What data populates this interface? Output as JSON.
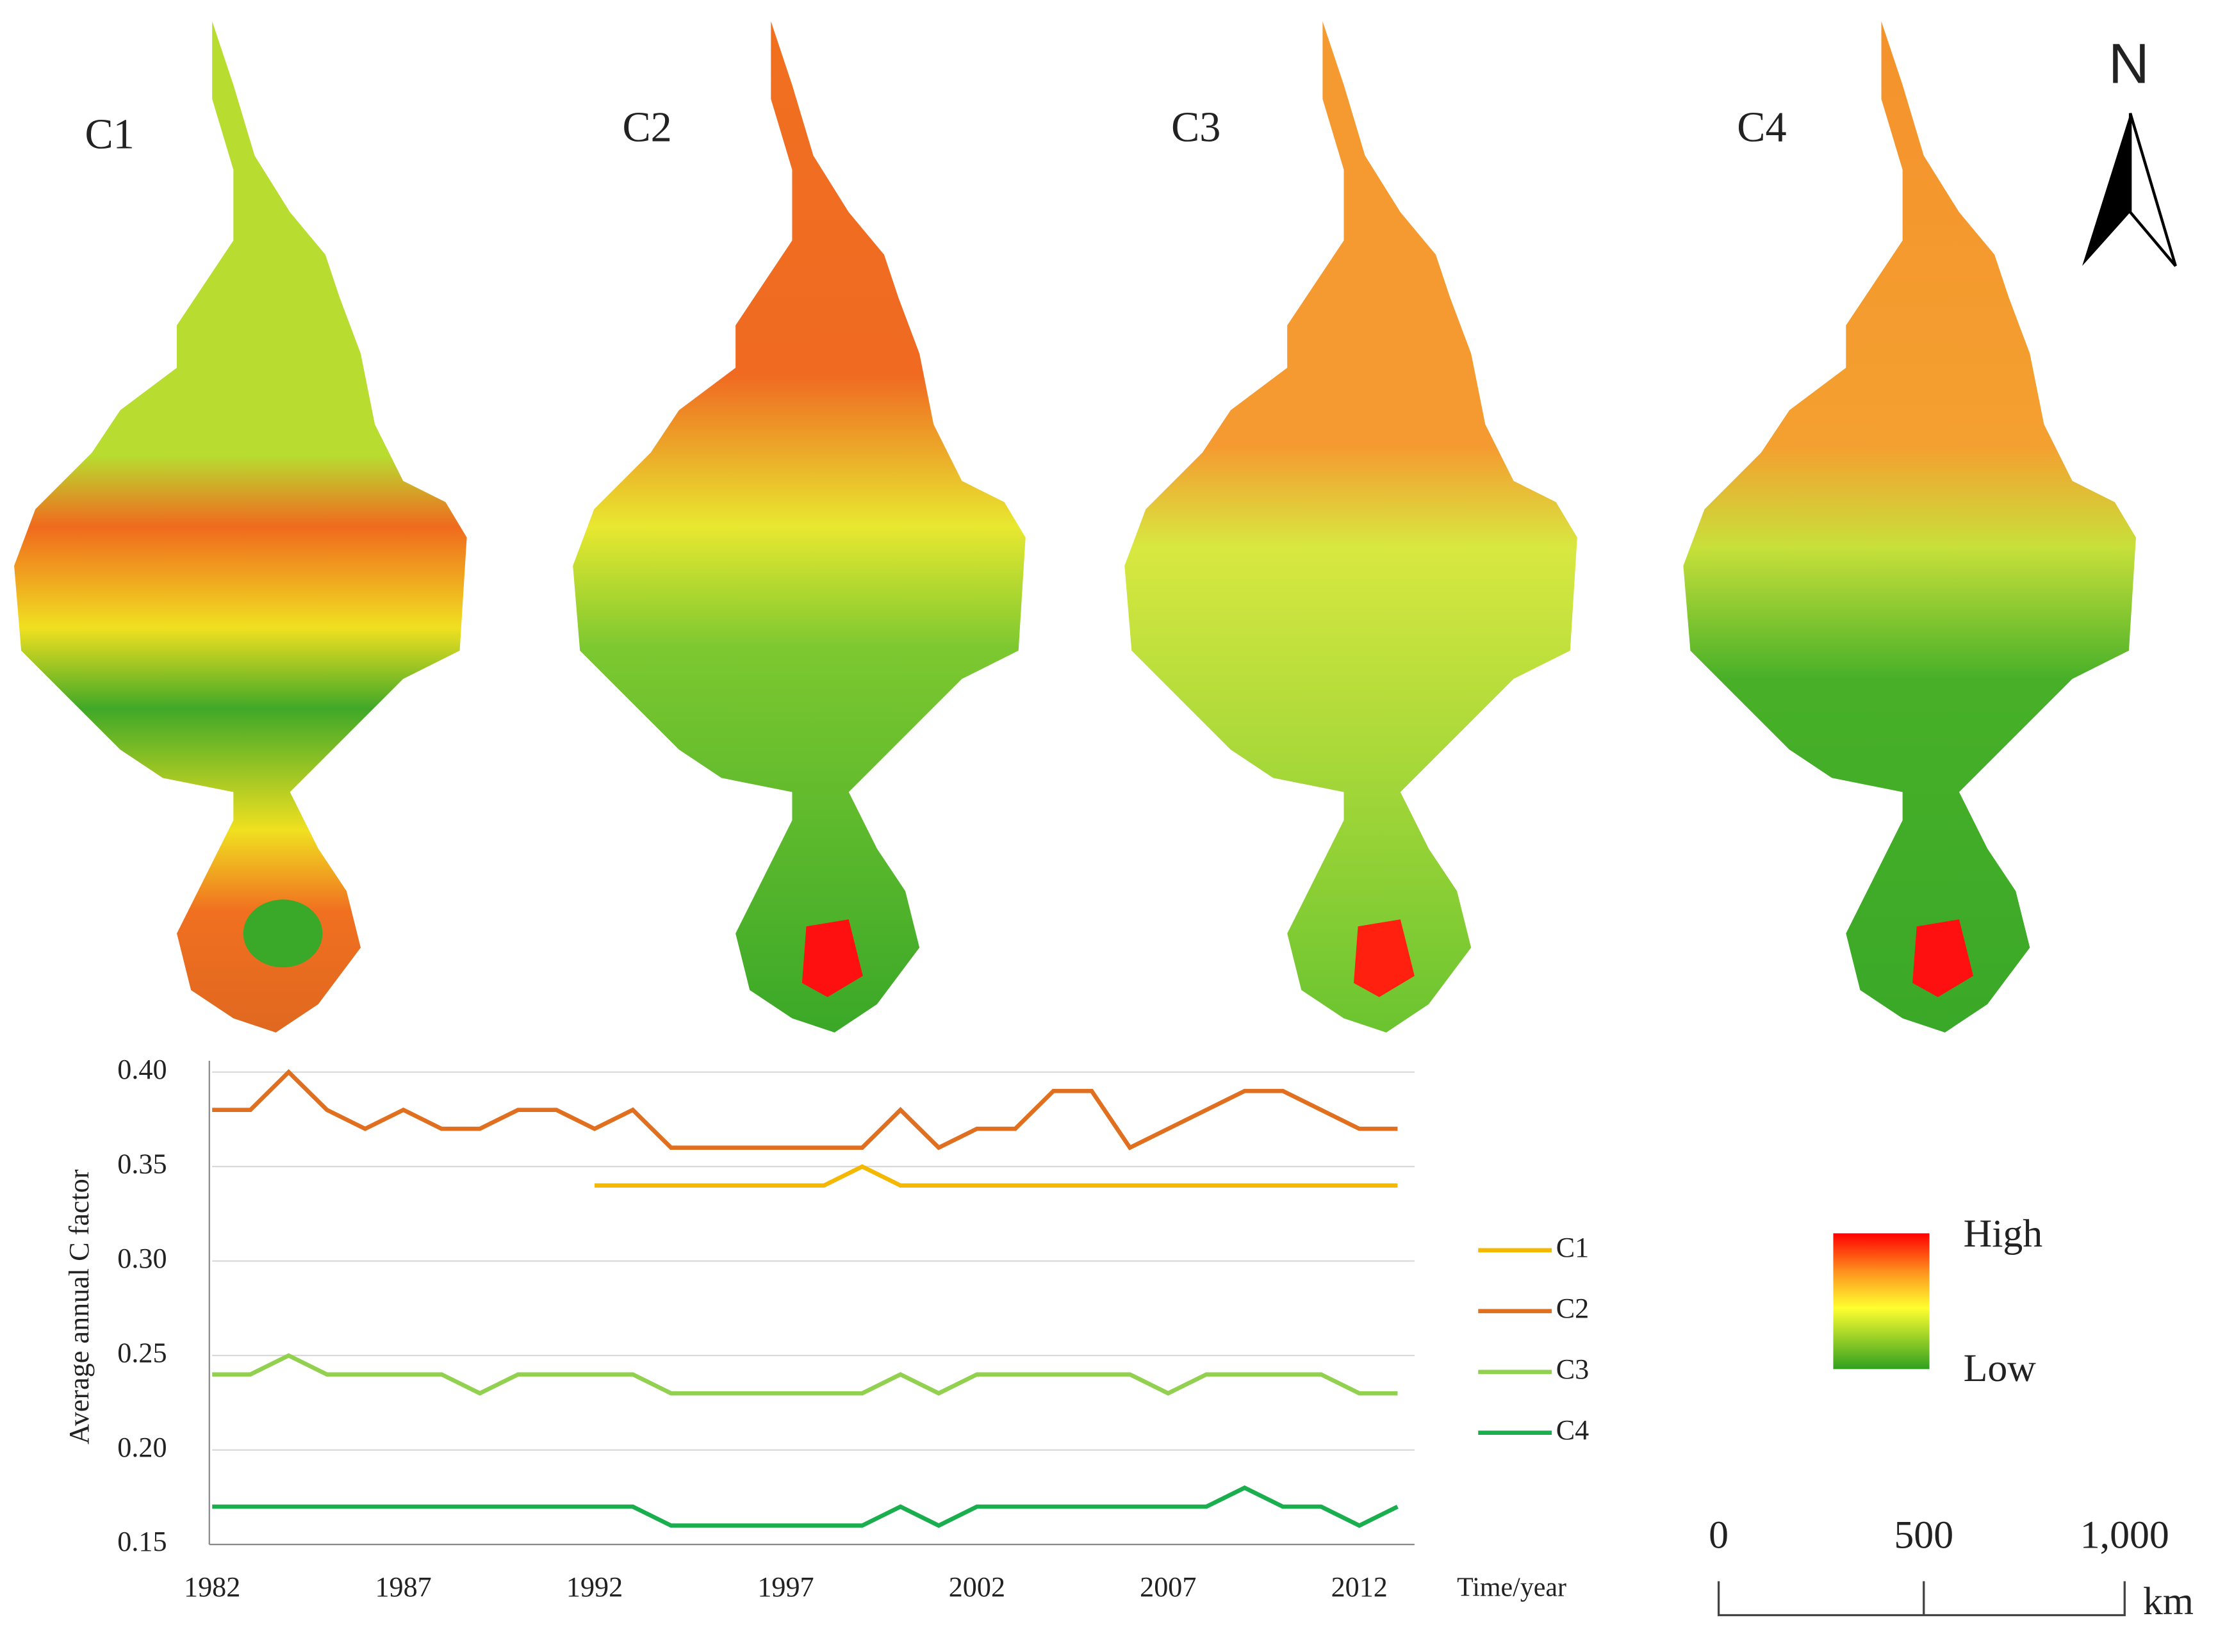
{
  "maps": {
    "panels": [
      "C1",
      "C2",
      "C3",
      "C4"
    ],
    "north": "N",
    "legend_high": "High",
    "legend_low": "Low",
    "scale_labels": [
      "0",
      "500",
      "1,000"
    ],
    "scale_unit": "km"
  },
  "chart_data": {
    "type": "line",
    "y_label": "Average annual C factor",
    "x_label": "Time/year",
    "x": [
      1982,
      1983,
      1984,
      1985,
      1986,
      1987,
      1988,
      1989,
      1990,
      1991,
      1992,
      1993,
      1994,
      1995,
      1996,
      1997,
      1998,
      1999,
      2000,
      2001,
      2002,
      2003,
      2004,
      2005,
      2006,
      2007,
      2008,
      2009,
      2010,
      2011,
      2012,
      2013
    ],
    "series": [
      {
        "name": "C1",
        "color": "#f5b800",
        "values": [
          null,
          null,
          null,
          null,
          null,
          null,
          null,
          null,
          null,
          null,
          0.34,
          0.34,
          0.34,
          0.34,
          0.34,
          0.34,
          0.34,
          0.35,
          0.34,
          0.34,
          0.34,
          0.34,
          0.34,
          0.34,
          0.34,
          0.34,
          0.34,
          0.34,
          0.34,
          0.34,
          0.34,
          0.34
        ]
      },
      {
        "name": "C2",
        "color": "#e0701f",
        "values": [
          0.38,
          0.38,
          0.4,
          0.38,
          0.37,
          0.38,
          0.37,
          0.37,
          0.38,
          0.38,
          0.37,
          0.38,
          0.36,
          0.36,
          0.36,
          0.36,
          0.36,
          0.36,
          0.38,
          0.36,
          0.37,
          0.37,
          0.39,
          0.39,
          0.36,
          0.37,
          0.38,
          0.39,
          0.39,
          0.38,
          0.37,
          0.37
        ]
      },
      {
        "name": "C3",
        "color": "#92d050",
        "values": [
          0.24,
          0.24,
          0.25,
          0.24,
          0.24,
          0.24,
          0.24,
          0.23,
          0.24,
          0.24,
          0.24,
          0.24,
          0.23,
          0.23,
          0.23,
          0.23,
          0.23,
          0.23,
          0.24,
          0.23,
          0.24,
          0.24,
          0.24,
          0.24,
          0.24,
          0.23,
          0.24,
          0.24,
          0.24,
          0.24,
          0.23,
          0.23
        ]
      },
      {
        "name": "C4",
        "color": "#1aae4f",
        "values": [
          0.17,
          0.17,
          0.17,
          0.17,
          0.17,
          0.17,
          0.17,
          0.17,
          0.17,
          0.17,
          0.17,
          0.17,
          0.16,
          0.16,
          0.16,
          0.16,
          0.16,
          0.16,
          0.17,
          0.16,
          0.17,
          0.17,
          0.17,
          0.17,
          0.17,
          0.17,
          0.17,
          0.18,
          0.17,
          0.17,
          0.16,
          0.17
        ]
      }
    ],
    "xlim": [
      1982,
      2013
    ],
    "xticks": [
      1982,
      1987,
      1992,
      1997,
      2002,
      2007,
      2012
    ],
    "ylim": [
      0.15,
      0.4
    ],
    "yticks": [
      0.15,
      {
        "value": 0.2,
        "label": "0.20"
      },
      0.25,
      {
        "value": 0.3,
        "label": "0.30"
      },
      0.35,
      {
        "value": 0.4,
        "label": "0.40"
      }
    ],
    "grid": true
  }
}
